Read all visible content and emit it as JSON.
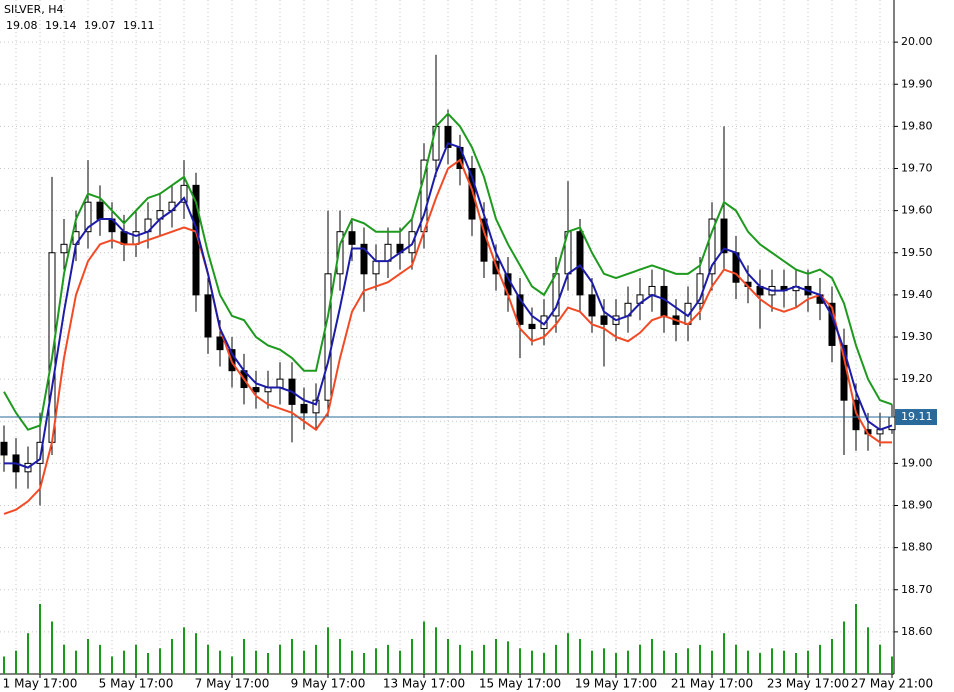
{
  "chart_data": {
    "type": "candlestick",
    "title": "SILVER, H4",
    "categories": [
      null,
      null,
      null,
      "1 May 17:00",
      null,
      null,
      null,
      null,
      null,
      null,
      null,
      "5 May 17:00",
      null,
      null,
      null,
      null,
      null,
      null,
      null,
      "7 May 17:00",
      null,
      null,
      null,
      null,
      null,
      null,
      null,
      "9 May 17:00",
      null,
      null,
      null,
      null,
      null,
      null,
      null,
      "13 May 17:00",
      null,
      null,
      null,
      null,
      null,
      null,
      null,
      "15 May 17:00",
      null,
      null,
      null,
      null,
      null,
      null,
      null,
      "19 May 17:00",
      null,
      null,
      null,
      null,
      null,
      null,
      null,
      "21 May 17:00",
      null,
      null,
      null,
      null,
      null,
      null,
      null,
      "23 May 17:00",
      null,
      null,
      null,
      null,
      null,
      null,
      "27 May 21:00"
    ],
    "open": [
      19.05,
      19.02,
      18.98,
      19.0,
      19.05,
      19.5,
      19.52,
      19.55,
      19.62,
      19.58,
      19.55,
      19.52,
      19.55,
      19.58,
      19.6,
      19.62,
      19.66,
      19.4,
      19.3,
      19.27,
      19.22,
      19.18,
      19.17,
      19.18,
      19.2,
      19.14,
      19.12,
      19.15,
      19.45,
      19.55,
      19.52,
      19.45,
      19.48,
      19.52,
      19.5,
      19.55,
      19.72,
      19.8,
      19.75,
      19.7,
      19.58,
      19.48,
      19.45,
      19.4,
      19.33,
      19.32,
      19.35,
      19.45,
      19.55,
      19.4,
      19.35,
      19.33,
      19.35,
      19.38,
      19.4,
      19.42,
      19.35,
      19.33,
      19.38,
      19.45,
      19.58,
      19.5,
      19.43,
      19.42,
      19.4,
      19.42,
      19.41,
      19.42,
      19.4,
      19.38,
      19.28,
      19.15,
      19.08,
      19.07,
      19.08
    ],
    "high": [
      19.09,
      19.06,
      19.04,
      19.12,
      19.68,
      19.58,
      19.6,
      19.72,
      19.66,
      19.62,
      19.59,
      19.6,
      19.62,
      19.64,
      19.66,
      19.72,
      19.69,
      19.44,
      19.34,
      19.3,
      19.26,
      19.22,
      19.22,
      19.24,
      19.24,
      19.18,
      19.19,
      19.6,
      19.6,
      19.58,
      19.56,
      19.52,
      19.56,
      19.56,
      19.58,
      19.76,
      19.97,
      19.84,
      19.78,
      19.73,
      19.62,
      19.52,
      19.49,
      19.44,
      19.37,
      19.39,
      19.49,
      19.67,
      19.58,
      19.44,
      19.39,
      19.39,
      19.42,
      19.44,
      19.46,
      19.46,
      19.39,
      19.42,
      19.49,
      19.62,
      19.8,
      19.54,
      19.47,
      19.46,
      19.46,
      19.46,
      19.46,
      19.46,
      19.44,
      19.42,
      19.32,
      19.19,
      19.12,
      19.12,
      19.14
    ],
    "low": [
      18.98,
      18.94,
      18.94,
      18.9,
      19.02,
      19.46,
      19.48,
      19.51,
      19.54,
      19.51,
      19.48,
      19.49,
      19.51,
      19.54,
      19.56,
      19.58,
      19.36,
      19.26,
      19.23,
      19.18,
      19.14,
      19.13,
      19.13,
      19.14,
      19.05,
      19.08,
      19.08,
      19.11,
      19.41,
      19.48,
      19.36,
      19.41,
      19.44,
      19.46,
      19.46,
      19.51,
      19.68,
      19.71,
      19.66,
      19.54,
      19.44,
      19.41,
      19.36,
      19.25,
      19.28,
      19.28,
      19.31,
      19.41,
      19.36,
      19.31,
      19.23,
      19.29,
      19.31,
      19.34,
      19.36,
      19.31,
      19.29,
      19.29,
      19.34,
      19.41,
      19.46,
      19.39,
      19.38,
      19.32,
      19.36,
      19.37,
      19.37,
      19.36,
      19.34,
      19.24,
      19.02,
      19.03,
      19.03,
      19.04,
      19.07
    ],
    "close": [
      19.02,
      18.98,
      19.0,
      19.05,
      19.5,
      19.52,
      19.55,
      19.62,
      19.58,
      19.55,
      19.52,
      19.55,
      19.58,
      19.6,
      19.62,
      19.66,
      19.4,
      19.3,
      19.27,
      19.22,
      19.18,
      19.17,
      19.18,
      19.2,
      19.14,
      19.12,
      19.15,
      19.45,
      19.55,
      19.52,
      19.45,
      19.48,
      19.52,
      19.5,
      19.55,
      19.72,
      19.8,
      19.75,
      19.7,
      19.58,
      19.48,
      19.45,
      19.4,
      19.33,
      19.32,
      19.35,
      19.45,
      19.55,
      19.4,
      19.35,
      19.33,
      19.35,
      19.38,
      19.4,
      19.42,
      19.35,
      19.33,
      19.38,
      19.45,
      19.58,
      19.5,
      19.43,
      19.42,
      19.4,
      19.42,
      19.41,
      19.42,
      19.4,
      19.38,
      19.28,
      19.15,
      19.08,
      19.07,
      19.08,
      19.11
    ],
    "bull_color": "#ffffff",
    "bear_color": "#000000",
    "series": [
      {
        "color": "#1e9a1e",
        "values": [
          19.17,
          19.12,
          19.08,
          19.09,
          19.25,
          19.45,
          19.58,
          19.64,
          19.63,
          19.6,
          19.57,
          19.6,
          19.63,
          19.64,
          19.66,
          19.68,
          19.62,
          19.5,
          19.4,
          19.35,
          19.34,
          19.3,
          19.28,
          19.27,
          19.25,
          19.22,
          19.22,
          19.35,
          19.52,
          19.58,
          19.57,
          19.55,
          19.55,
          19.55,
          19.58,
          19.68,
          19.8,
          19.83,
          19.8,
          19.75,
          19.68,
          19.58,
          19.52,
          19.47,
          19.42,
          19.4,
          19.45,
          19.55,
          19.56,
          19.5,
          19.45,
          19.44,
          19.45,
          19.46,
          19.47,
          19.46,
          19.45,
          19.45,
          19.47,
          19.55,
          19.62,
          19.6,
          19.55,
          19.52,
          19.5,
          19.48,
          19.46,
          19.45,
          19.46,
          19.44,
          19.38,
          19.28,
          19.2,
          19.15,
          19.14
        ]
      },
      {
        "color": "#f24a25",
        "values": [
          18.88,
          18.89,
          18.91,
          18.94,
          19.05,
          19.25,
          19.4,
          19.48,
          19.52,
          19.53,
          19.52,
          19.52,
          19.53,
          19.54,
          19.55,
          19.56,
          19.55,
          19.45,
          19.32,
          19.24,
          19.2,
          19.16,
          19.14,
          19.13,
          19.12,
          19.1,
          19.08,
          19.12,
          19.25,
          19.36,
          19.41,
          19.42,
          19.43,
          19.45,
          19.47,
          19.55,
          19.63,
          19.7,
          19.72,
          19.65,
          19.55,
          19.47,
          19.4,
          19.32,
          19.29,
          19.3,
          19.33,
          19.37,
          19.36,
          19.33,
          19.32,
          19.3,
          19.29,
          19.31,
          19.34,
          19.35,
          19.34,
          19.33,
          19.36,
          19.42,
          19.46,
          19.45,
          19.42,
          19.39,
          19.37,
          19.36,
          19.37,
          19.39,
          19.4,
          19.37,
          19.25,
          19.12,
          19.07,
          19.05,
          19.05
        ]
      },
      {
        "color": "#1c1ca8",
        "values": [
          19.0,
          19.0,
          18.99,
          19.01,
          19.18,
          19.36,
          19.52,
          19.56,
          19.58,
          19.58,
          19.55,
          19.54,
          19.55,
          19.58,
          19.6,
          19.63,
          19.56,
          19.45,
          19.32,
          19.26,
          19.22,
          19.19,
          19.18,
          19.18,
          19.17,
          19.15,
          19.14,
          19.24,
          19.37,
          19.51,
          19.51,
          19.48,
          19.48,
          19.5,
          19.52,
          19.59,
          19.69,
          19.76,
          19.75,
          19.68,
          19.59,
          19.5,
          19.44,
          19.39,
          19.35,
          19.33,
          19.37,
          19.45,
          19.47,
          19.43,
          19.36,
          19.34,
          19.35,
          19.38,
          19.4,
          19.39,
          19.37,
          19.35,
          19.39,
          19.47,
          19.51,
          19.5,
          19.45,
          19.42,
          19.41,
          19.41,
          19.42,
          19.41,
          19.4,
          19.35,
          19.27,
          19.17,
          19.1,
          19.08,
          19.09
        ]
      }
    ],
    "volume": {
      "color": "#1a9a1a",
      "values": [
        15,
        20,
        35,
        60,
        45,
        25,
        20,
        30,
        25,
        15,
        20,
        25,
        18,
        22,
        30,
        40,
        35,
        25,
        20,
        15,
        30,
        20,
        18,
        25,
        30,
        20,
        25,
        40,
        30,
        20,
        18,
        22,
        25,
        20,
        30,
        45,
        40,
        30,
        25,
        20,
        25,
        30,
        28,
        22,
        20,
        18,
        25,
        35,
        30,
        20,
        22,
        18,
        20,
        25,
        30,
        20,
        18,
        22,
        25,
        20,
        35,
        25,
        20,
        18,
        22,
        20,
        18,
        20,
        25,
        30,
        45,
        60,
        40,
        25,
        15
      ]
    },
    "ylim": [
      18.5,
      20.1
    ],
    "yticks": [
      {
        "value": 20,
        "label": "20.00"
      },
      {
        "value": 19.9,
        "label": "19.90"
      },
      {
        "value": 19.8,
        "label": "19.80"
      },
      {
        "value": 19.7,
        "label": "19.70"
      },
      {
        "value": 19.6,
        "label": "19.60"
      },
      {
        "value": 19.5,
        "label": "19.50"
      },
      {
        "value": 19.4,
        "label": "19.40"
      },
      {
        "value": 19.3,
        "label": "19.30"
      },
      {
        "value": 19.2,
        "label": "19.20"
      },
      {
        "value": 19.1,
        "label": "19.10"
      },
      {
        "value": 19,
        "label": "19.00"
      },
      {
        "value": 18.9,
        "label": "18.90"
      },
      {
        "value": 18.8,
        "label": "18.80"
      },
      {
        "value": 18.7,
        "label": "18.70"
      },
      {
        "value": 18.6,
        "label": "18.60"
      }
    ],
    "grid": true,
    "price_line_color": "#2a6a9a"
  }
}
